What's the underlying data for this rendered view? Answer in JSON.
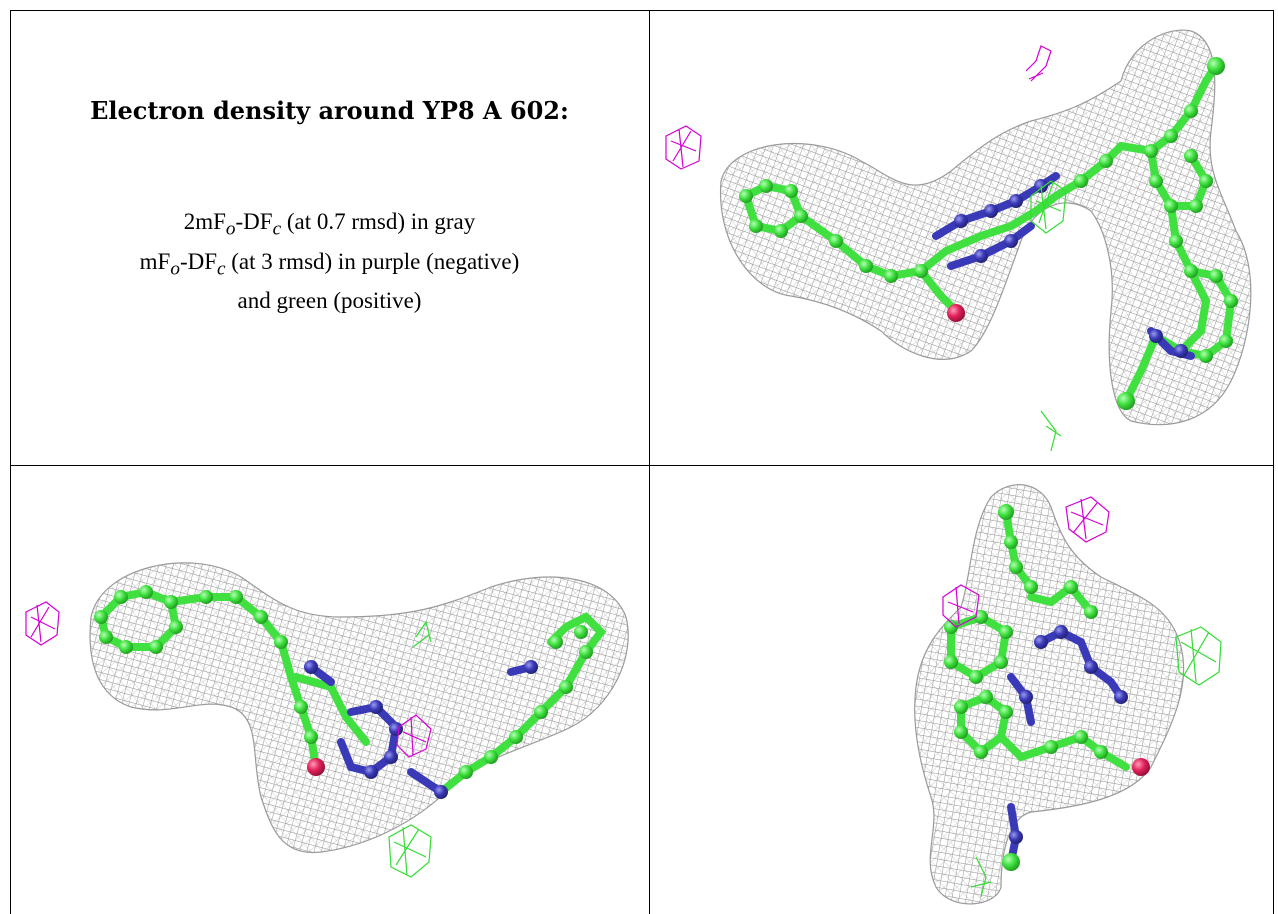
{
  "heading": "Electron density around YP8 A 602:",
  "legend": {
    "line1_pre": "2mF",
    "line1_sub1": "o",
    "line1_mid": "-DF",
    "line1_sub2": "c",
    "line1_post": " (at 0.7 rmsd) in gray",
    "line2_pre": "mF",
    "line2_sub1": "o",
    "line2_mid": "-DF",
    "line2_sub2": "c",
    "line2_post": " (at 3 rmsd) in purple (negative)",
    "line3": "and green (positive)"
  },
  "colors": {
    "mesh_2fofc": "#8f8f8f",
    "diff_negative": "#d400d4",
    "diff_positive": "#33dd33",
    "carbon": "#3fe03f",
    "nitrogen": "#3a3ab8",
    "oxygen": "#e0205a"
  }
}
